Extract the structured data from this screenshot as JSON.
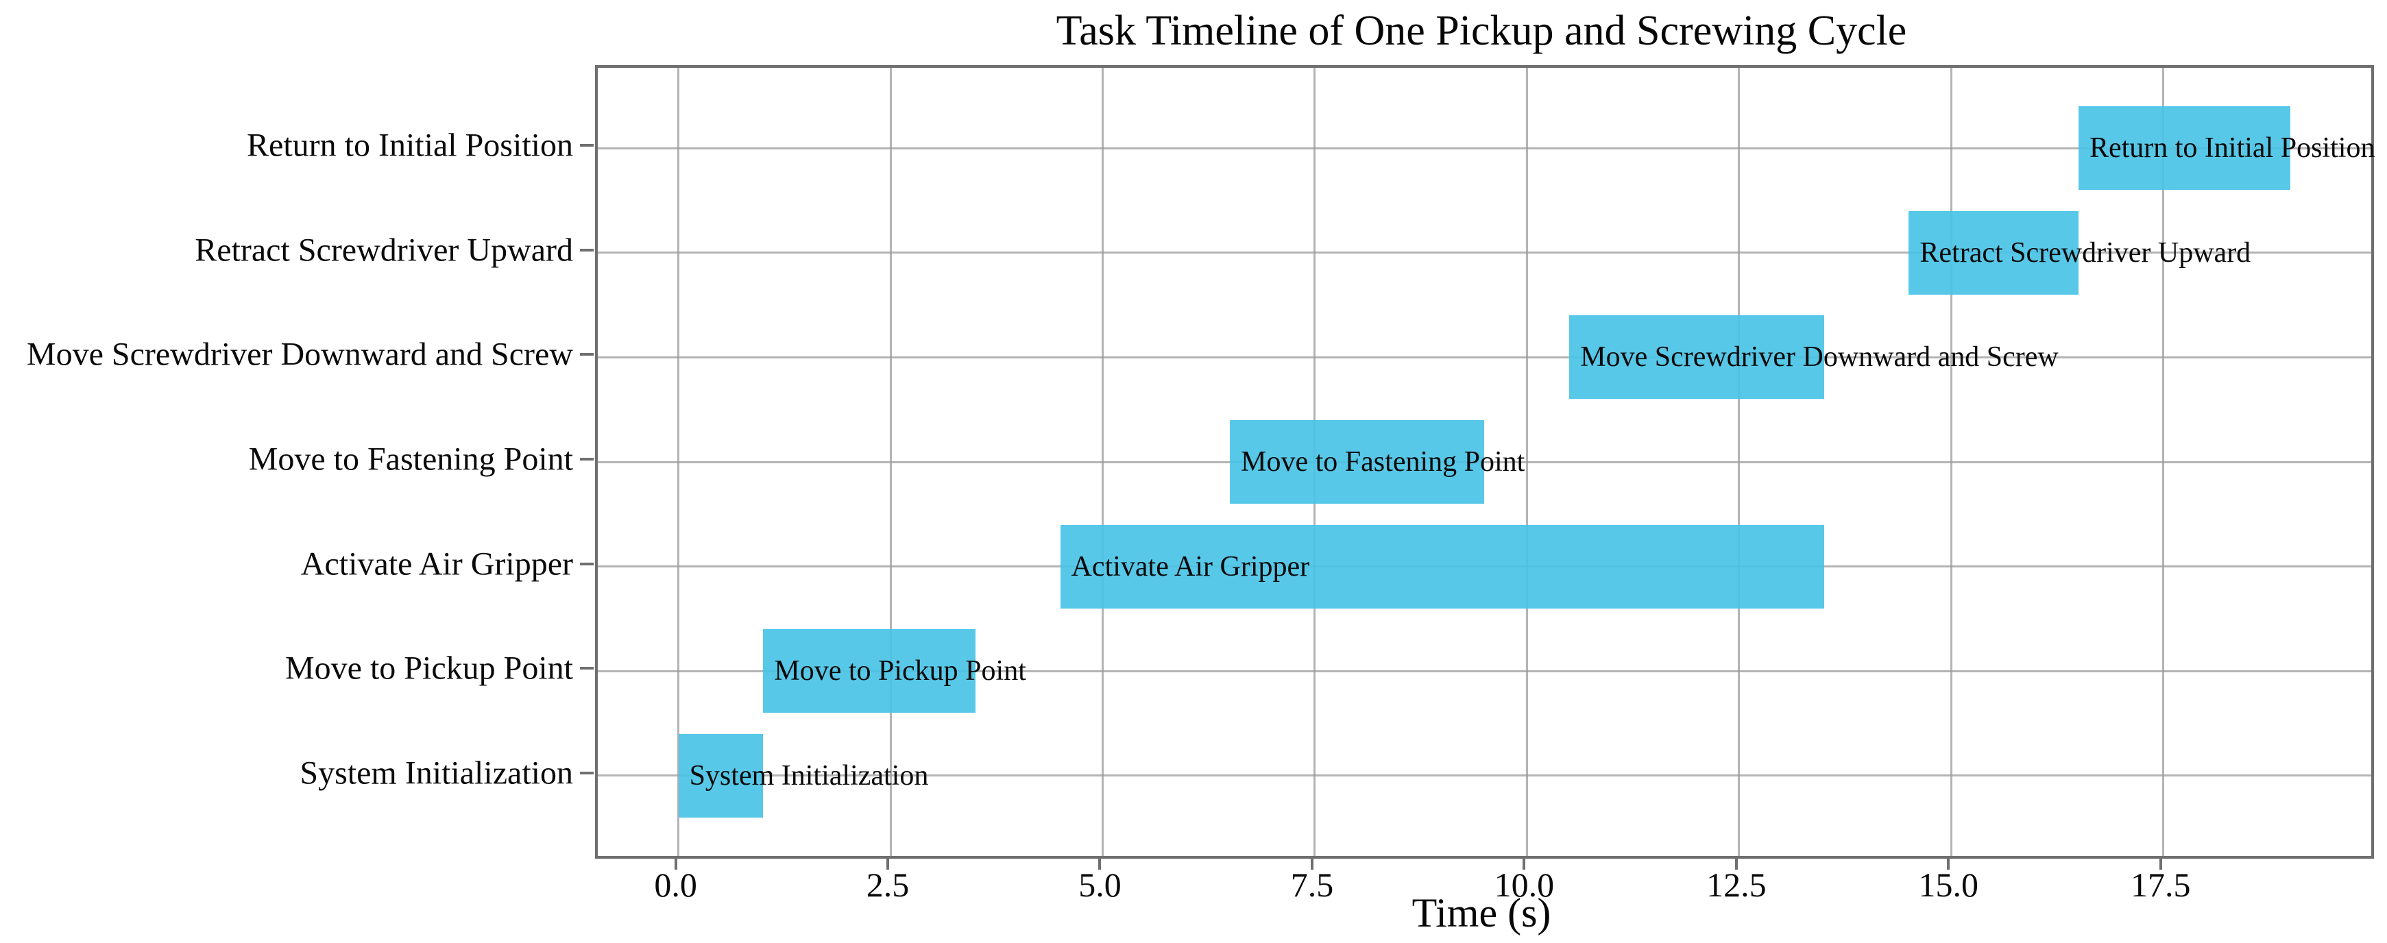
{
  "chart_data": {
    "type": "bar",
    "subtype": "gantt-horizontal",
    "title": "Task Timeline of One Pickup and Screwing Cycle",
    "xlabel": "Time (s)",
    "ylabel": "",
    "grid": true,
    "legend": "none",
    "bar_color": "#4AC3E6",
    "grid_color": "#9B9B9B",
    "xlim": [
      -0.95,
      19.95
    ],
    "x_ticks": [
      0.0,
      2.5,
      5.0,
      7.5,
      10.0,
      12.5,
      15.0,
      17.5
    ],
    "x_tick_labels": [
      "0.0",
      "2.5",
      "5.0",
      "7.5",
      "10.0",
      "12.5",
      "15.0",
      "17.5"
    ],
    "categories_top_to_bottom": [
      "Return to Initial Position",
      "Retract Screwdriver Upward",
      "Move Screwdriver Downward and Screw",
      "Move to Fastening Point",
      "Activate Air Gripper",
      "Move to Pickup Point",
      "System Initialization"
    ],
    "tasks_top_to_bottom": [
      {
        "label": "Return to Initial Position",
        "start": 16.5,
        "end": 19.0,
        "duration": 2.5
      },
      {
        "label": "Retract Screwdriver Upward",
        "start": 14.5,
        "end": 16.5,
        "duration": 2.0
      },
      {
        "label": "Move Screwdriver Downward and Screw",
        "start": 10.5,
        "end": 13.5,
        "duration": 3.0
      },
      {
        "label": "Move to Fastening Point",
        "start": 6.5,
        "end": 9.5,
        "duration": 3.0
      },
      {
        "label": "Activate Air Gripper",
        "start": 4.5,
        "end": 13.5,
        "duration": 9.0
      },
      {
        "label": "Move to Pickup Point",
        "start": 1.0,
        "end": 3.5,
        "duration": 2.5
      },
      {
        "label": "System Initialization",
        "start": 0.0,
        "end": 1.0,
        "duration": 1.0
      }
    ]
  }
}
